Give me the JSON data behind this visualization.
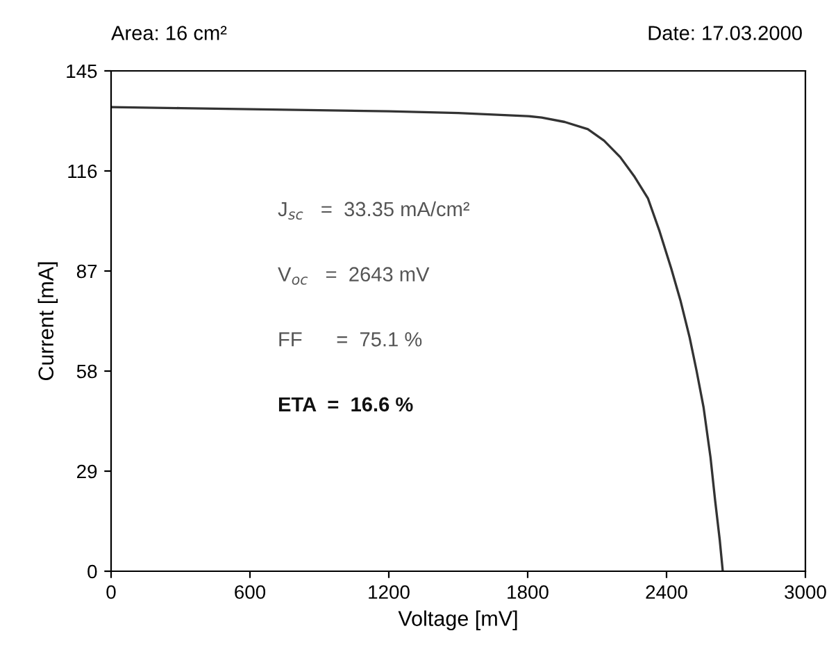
{
  "chart_data": {
    "type": "line",
    "xlabel": "Voltage [mV]",
    "ylabel": "Current [mA]",
    "x": [
      0,
      300,
      600,
      900,
      1200,
      1500,
      1800,
      1860,
      1960,
      2060,
      2130,
      2200,
      2260,
      2320,
      2370,
      2420,
      2460,
      2500,
      2530,
      2560,
      2590,
      2610,
      2630,
      2643
    ],
    "series": [
      {
        "color": "#333333",
        "values": [
          134.5,
          134.2,
          133.9,
          133.6,
          133.3,
          132.8,
          131.9,
          131.5,
          130.2,
          128.1,
          124.8,
          120,
          114.5,
          108,
          98.5,
          87.8,
          78.5,
          67.7,
          58,
          47.5,
          33,
          20.5,
          9,
          0
        ]
      }
    ],
    "xlim": [
      0,
      3000
    ],
    "ylim": [
      0,
      145
    ],
    "xticks": [
      0,
      600,
      1200,
      1800,
      2400,
      3000
    ],
    "yticks": [
      0,
      29,
      58,
      87,
      116,
      145
    ],
    "grid": false,
    "marker": "none",
    "line_style": "solid",
    "annotations": [
      "Area: 16 cm²",
      "Date: 17.03.2000",
      "J$_{sc}$   =  33.35 mA/cm²",
      "V$_{oc}$   =  2643 mV",
      "FF      =  75.1 %",
      "ETA  =  16.6 %"
    ]
  }
}
